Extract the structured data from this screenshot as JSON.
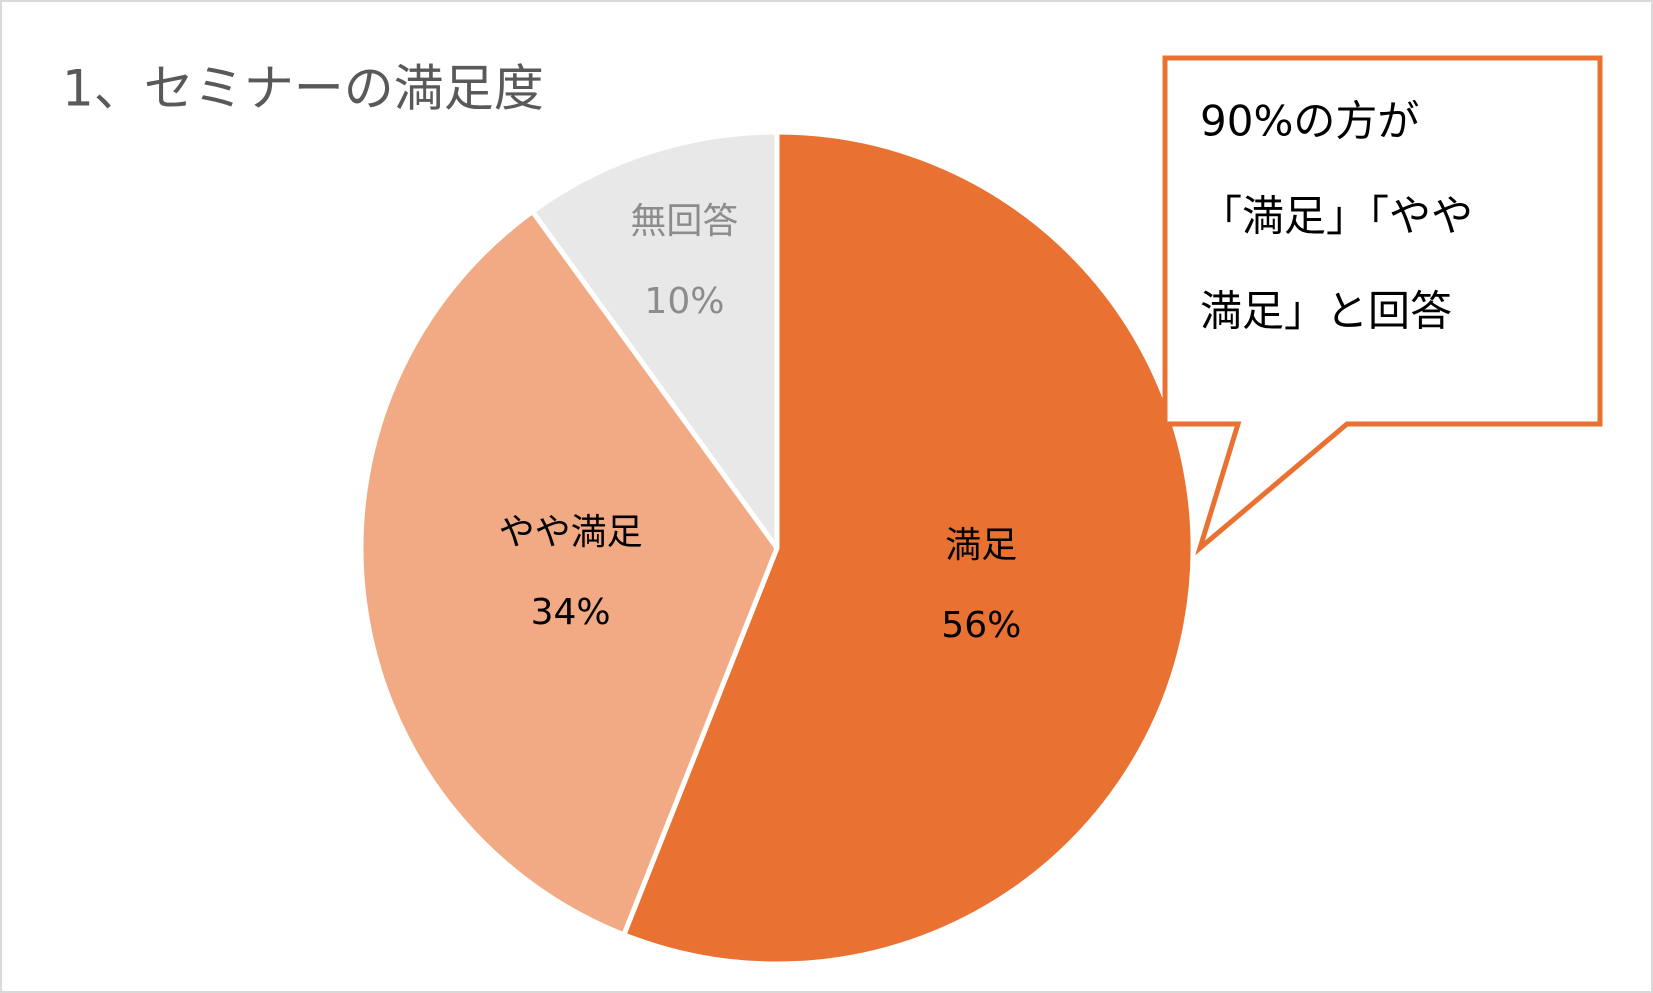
{
  "chart_data": {
    "type": "pie",
    "title": "1、セミナーの満足度",
    "categories": [
      "満足",
      "やや満足",
      "無回答"
    ],
    "values": [
      56,
      34,
      10
    ],
    "value_labels": [
      "56%",
      "34%",
      "10%"
    ],
    "colors": [
      "#E97132",
      "#F2AA84",
      "#E8E8E8"
    ],
    "label_colors": [
      "#000000",
      "#000000",
      "#8C8C8C"
    ],
    "annotation": [
      "90%の方が",
      "「満足」「やや",
      "満足」と回答"
    ]
  }
}
